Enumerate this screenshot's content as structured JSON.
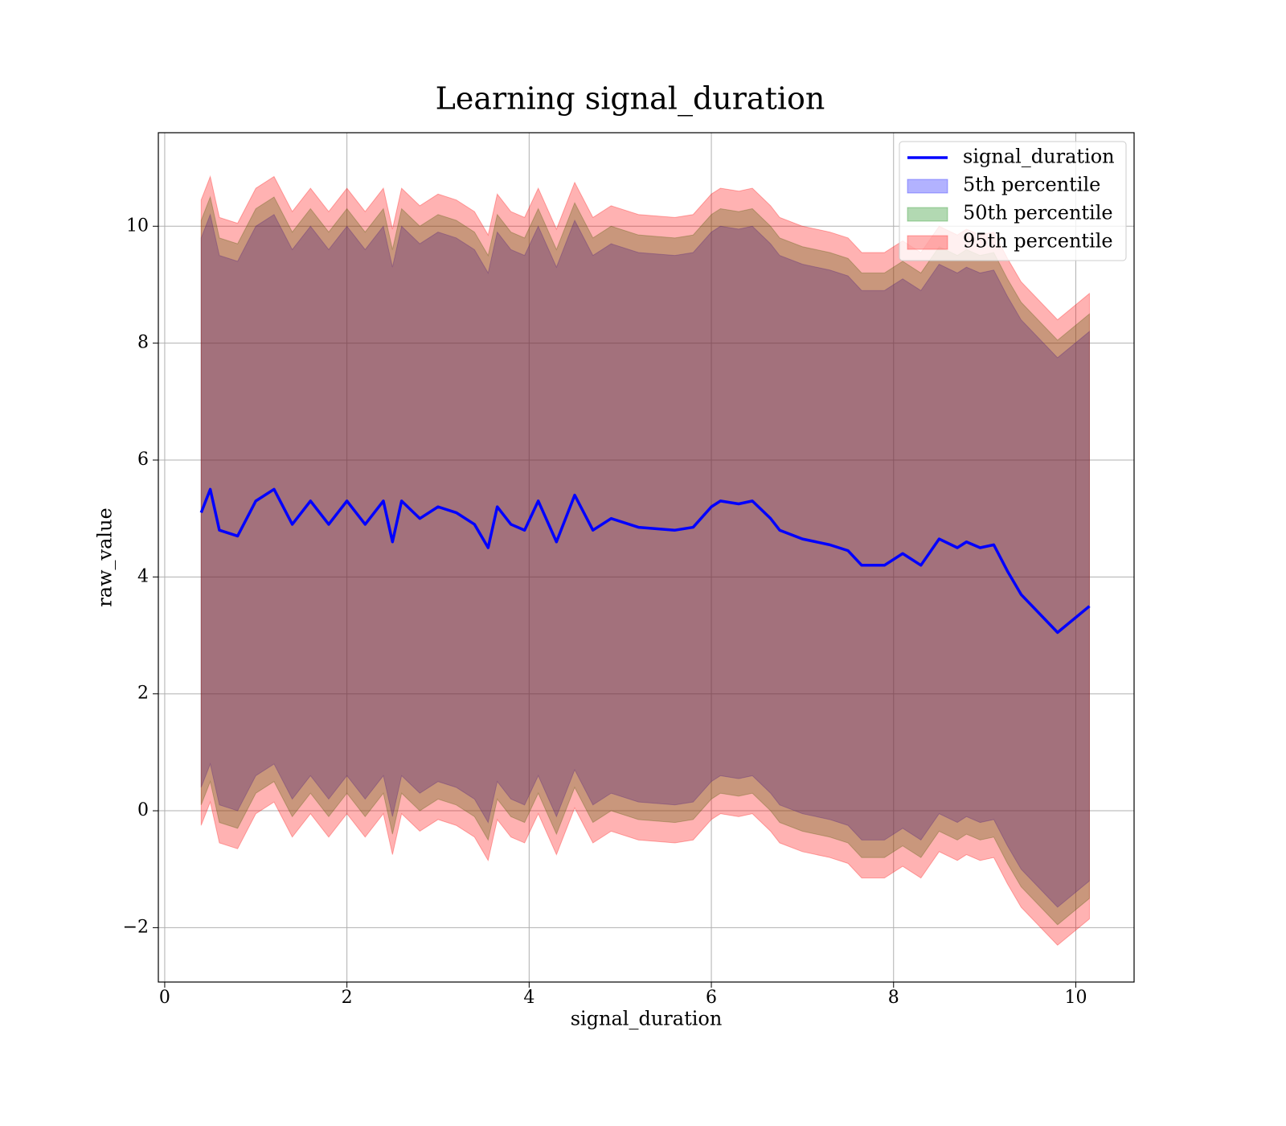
{
  "chart_data": {
    "type": "line",
    "title": "Learning signal_duration",
    "x_label": "signal_duration",
    "y_label": "raw_value",
    "x": [
      0.4,
      0.5,
      0.6,
      0.8,
      1.0,
      1.2,
      1.4,
      1.6,
      1.8,
      2.0,
      2.2,
      2.4,
      2.5,
      2.6,
      2.8,
      3.0,
      3.2,
      3.4,
      3.55,
      3.65,
      3.8,
      3.95,
      4.1,
      4.3,
      4.5,
      4.7,
      4.9,
      5.2,
      5.6,
      5.8,
      6.0,
      6.1,
      6.3,
      6.45,
      6.65,
      6.75,
      7.0,
      7.3,
      7.5,
      7.65,
      7.9,
      8.1,
      8.3,
      8.5,
      8.7,
      8.8,
      8.95,
      9.1,
      9.25,
      9.4,
      9.8,
      10.15
    ],
    "series": [
      {
        "name": "signal_duration",
        "color": "#0000ff",
        "values": [
          5.1,
          5.5,
          4.8,
          4.7,
          5.3,
          5.5,
          4.9,
          5.3,
          4.9,
          5.3,
          4.9,
          5.3,
          4.6,
          5.3,
          5.0,
          5.2,
          5.1,
          4.9,
          4.5,
          5.2,
          4.9,
          4.8,
          5.3,
          4.6,
          5.4,
          4.8,
          5.0,
          4.85,
          4.8,
          4.85,
          5.2,
          5.3,
          5.25,
          5.3,
          5.0,
          4.8,
          4.65,
          4.55,
          4.45,
          4.2,
          4.2,
          4.4,
          4.2,
          4.65,
          4.5,
          4.6,
          4.5,
          4.55,
          4.1,
          3.7,
          3.05,
          3.5
        ]
      }
    ],
    "bands": [
      {
        "name": "5th percentile",
        "color": "#0000ff",
        "lower": [
          0.4,
          0.8,
          0.1,
          0,
          0.6,
          0.8,
          0.2,
          0.6,
          0.2,
          0.6,
          0.2,
          0.6,
          -0.1,
          0.6,
          0.3,
          0.5,
          0.4,
          0.2,
          -0.2,
          0.5,
          0.2,
          0.1,
          0.6,
          -0.1,
          0.7,
          0.1,
          0.3,
          0.15,
          0.1,
          0.15,
          0.5,
          0.6,
          0.55,
          0.6,
          0.3,
          0.1,
          -0.05,
          -0.15,
          -0.25,
          -0.5,
          -0.5,
          -0.3,
          -0.5,
          -0.05,
          -0.2,
          -0.1,
          -0.2,
          -0.15,
          -0.6,
          -1.0,
          -1.65,
          -1.2
        ],
        "upper": [
          9.8,
          10.2,
          9.5,
          9.4,
          10.0,
          10.2,
          9.6,
          10.0,
          9.6,
          10.0,
          9.6,
          10.0,
          9.3,
          10.0,
          9.7,
          9.9,
          9.8,
          9.6,
          9.2,
          9.9,
          9.6,
          9.5,
          10.0,
          9.3,
          10.1,
          9.5,
          9.7,
          9.55,
          9.5,
          9.55,
          9.9,
          10.0,
          9.95,
          10.0,
          9.7,
          9.5,
          9.35,
          9.25,
          9.15,
          8.9,
          8.9,
          9.1,
          8.9,
          9.35,
          9.2,
          9.3,
          9.2,
          9.25,
          8.8,
          8.4,
          7.75,
          8.2
        ]
      },
      {
        "name": "50th percentile",
        "color": "#008000",
        "lower": [
          0.1,
          0.5,
          -0.2,
          -0.3,
          0.3,
          0.5,
          -0.1,
          0.3,
          -0.1,
          0.3,
          -0.1,
          0.3,
          -0.4,
          0.3,
          0,
          0.2,
          0.1,
          -0.1,
          -0.5,
          0.2,
          -0.1,
          -0.2,
          0.3,
          -0.4,
          0.4,
          -0.2,
          0,
          -0.15,
          -0.2,
          -0.15,
          0.2,
          0.3,
          0.25,
          0.3,
          0,
          -0.2,
          -0.35,
          -0.45,
          -0.55,
          -0.8,
          -0.8,
          -0.6,
          -0.8,
          -0.35,
          -0.5,
          -0.4,
          -0.5,
          -0.45,
          -0.9,
          -1.3,
          -1.95,
          -1.5
        ],
        "upper": [
          10.1,
          10.5,
          9.8,
          9.7,
          10.3,
          10.5,
          9.9,
          10.3,
          9.9,
          10.3,
          9.9,
          10.3,
          9.6,
          10.3,
          10.0,
          10.2,
          10.1,
          9.9,
          9.5,
          10.2,
          9.9,
          9.8,
          10.3,
          9.6,
          10.4,
          9.8,
          10.0,
          9.85,
          9.8,
          9.85,
          10.2,
          10.3,
          10.25,
          10.3,
          10.0,
          9.8,
          9.65,
          9.55,
          9.45,
          9.2,
          9.2,
          9.4,
          9.2,
          9.65,
          9.5,
          9.6,
          9.5,
          9.55,
          9.1,
          8.7,
          8.05,
          8.5
        ]
      },
      {
        "name": "95th percentile",
        "color": "#ff0000",
        "lower": [
          -0.25,
          0.15,
          -0.55,
          -0.65,
          -0.05,
          0.15,
          -0.45,
          -0.05,
          -0.45,
          -0.05,
          -0.45,
          -0.05,
          -0.75,
          -0.05,
          -0.35,
          -0.15,
          -0.25,
          -0.45,
          -0.85,
          -0.15,
          -0.45,
          -0.55,
          -0.05,
          -0.75,
          0.05,
          -0.55,
          -0.35,
          -0.5,
          -0.55,
          -0.5,
          -0.15,
          -0.05,
          -0.1,
          -0.05,
          -0.35,
          -0.55,
          -0.7,
          -0.8,
          -0.9,
          -1.15,
          -1.15,
          -0.95,
          -1.15,
          -0.7,
          -0.85,
          -0.75,
          -0.85,
          -0.8,
          -1.25,
          -1.65,
          -2.3,
          -1.85
        ],
        "upper": [
          10.45,
          10.85,
          10.15,
          10.05,
          10.65,
          10.85,
          10.25,
          10.65,
          10.25,
          10.65,
          10.25,
          10.65,
          9.95,
          10.65,
          10.35,
          10.55,
          10.45,
          10.25,
          9.85,
          10.55,
          10.25,
          10.15,
          10.65,
          9.95,
          10.75,
          10.15,
          10.35,
          10.2,
          10.15,
          10.2,
          10.55,
          10.65,
          10.6,
          10.65,
          10.35,
          10.15,
          10.0,
          9.9,
          9.8,
          9.55,
          9.55,
          9.75,
          9.55,
          10.0,
          9.85,
          9.95,
          9.85,
          9.9,
          9.45,
          9.05,
          8.4,
          8.85
        ]
      }
    ],
    "xlim": [
      -0.07,
      10.64
    ],
    "ylim": [
      -2.93,
      11.6
    ],
    "xticks": [
      0,
      2,
      4,
      6,
      8,
      10
    ],
    "yticks": [
      {
        "value": -2,
        "label": "−2"
      },
      0,
      2,
      4,
      6,
      8,
      10
    ],
    "grid": true,
    "band_opacity": 0.3,
    "legend": "upper right"
  }
}
